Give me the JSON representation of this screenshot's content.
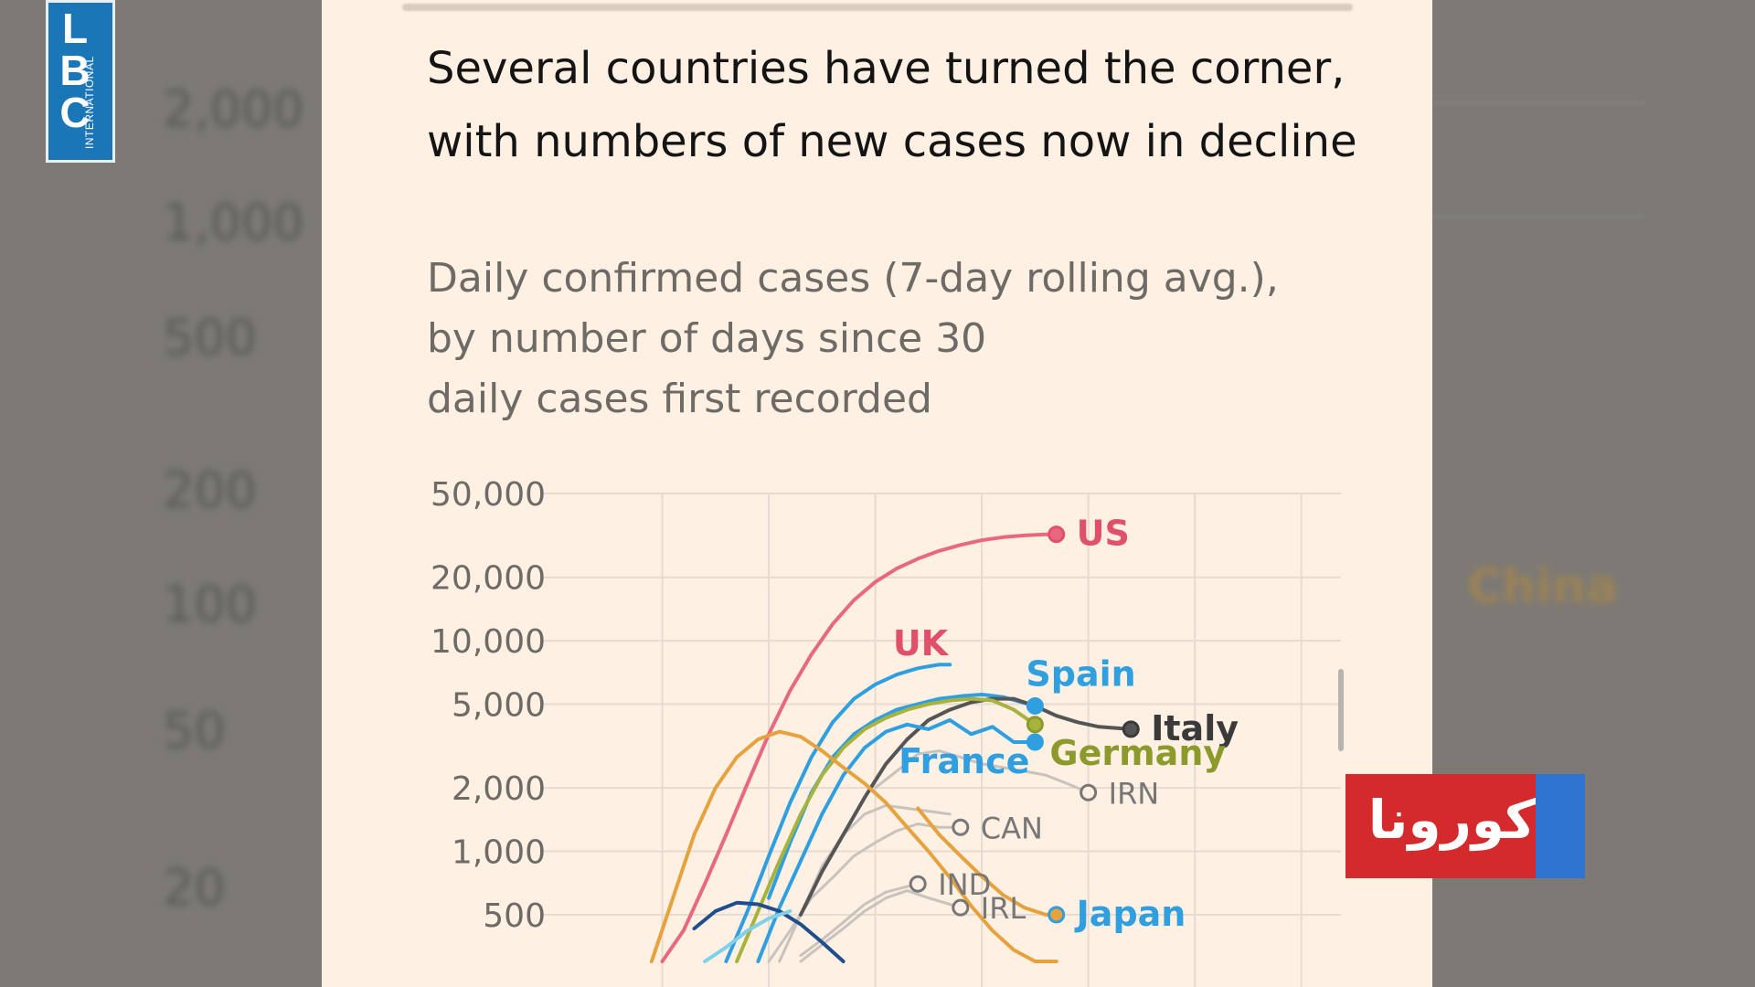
{
  "background": {
    "ticks": [
      "2,000",
      "1,000",
      "500",
      "200",
      "100",
      "50",
      "20"
    ],
    "label": "China"
  },
  "logo": {
    "letters": "LBC",
    "side_text": "INTERNATIONAL",
    "color": "#1b76b8"
  },
  "badge": {
    "text": "كورونا",
    "color": "#d42a2b",
    "stripe_color": "#2f74d0"
  },
  "chart_data": {
    "type": "line",
    "title": "Several countries have turned the corner, with numbers of new cases now in decline",
    "subtitle_lines": [
      "Daily confirmed cases (7-day rolling avg.),",
      "by number of days since 30",
      "daily cases first recorded"
    ],
    "y_scale": "log",
    "ylim": [
      300,
      50000
    ],
    "y_ticks": [
      50000,
      20000,
      10000,
      5000,
      2000,
      1000,
      500
    ],
    "y_tick_labels": [
      "50,000",
      "20,000",
      "10,000",
      "5,000",
      "2,000",
      "1,000",
      "500"
    ],
    "xlim": [
      -10,
      62
    ],
    "x_gridlines": [
      0,
      10,
      20,
      30,
      40,
      50,
      60
    ],
    "grid": true,
    "series": [
      {
        "name": "US",
        "color": "#e8697f",
        "label_color": "#e0506a",
        "label_weight": "bold",
        "endpoint": true,
        "x": [
          0,
          2,
          4,
          6,
          8,
          10,
          12,
          14,
          16,
          18,
          20,
          22,
          24,
          26,
          28,
          30,
          32,
          34,
          36,
          37
        ],
        "y": [
          300,
          420,
          700,
          1200,
          2100,
          3600,
          5800,
          8600,
          12000,
          15600,
          19000,
          22000,
          24500,
          26700,
          28500,
          30000,
          31000,
          31600,
          32000,
          32000
        ]
      },
      {
        "name": "UK",
        "color": "#2f9fe0",
        "label_color": "#e0506a",
        "label_weight": "bold",
        "endpoint": false,
        "x": [
          6,
          8,
          10,
          12,
          14,
          16,
          18,
          20,
          22,
          24,
          26,
          27
        ],
        "y": [
          300,
          520,
          950,
          1700,
          2800,
          4100,
          5300,
          6200,
          6900,
          7400,
          7700,
          7700
        ]
      },
      {
        "name": "Spain",
        "color": "#2f9fe0",
        "label_color": "#2f9fe0",
        "label_weight": "bold",
        "endpoint": true,
        "x": [
          10,
          12,
          14,
          16,
          18,
          20,
          22,
          24,
          26,
          28,
          30,
          32,
          35
        ],
        "y": [
          600,
          1100,
          1900,
          2800,
          3600,
          4200,
          4700,
          5000,
          5300,
          5450,
          5550,
          5400,
          4900
        ]
      },
      {
        "name": "Italy",
        "color": "#555555",
        "label_color": "#3a3a3a",
        "label_weight": "bold",
        "endpoint": true,
        "x": [
          13,
          15,
          17,
          19,
          21,
          23,
          25,
          27,
          29,
          31,
          33,
          35,
          37,
          39,
          41,
          44
        ],
        "y": [
          500,
          800,
          1200,
          1800,
          2600,
          3400,
          4200,
          4700,
          5100,
          5300,
          5300,
          4900,
          4400,
          4100,
          3900,
          3800
        ]
      },
      {
        "name": "Germany",
        "color": "#a6b33c",
        "label_color": "#8c9a2c",
        "label_weight": "bold",
        "endpoint": true,
        "x": [
          7,
          9,
          11,
          13,
          15,
          17,
          19,
          21,
          23,
          25,
          27,
          29,
          31,
          33,
          35
        ],
        "y": [
          300,
          520,
          900,
          1500,
          2300,
          3100,
          3800,
          4300,
          4700,
          5000,
          5200,
          5300,
          5200,
          4700,
          4000
        ]
      },
      {
        "name": "France",
        "color": "#2f9fe0",
        "label_color": "#2f9fe0",
        "label_weight": "bold",
        "endpoint": true,
        "x": [
          9,
          11,
          13,
          15,
          17,
          19,
          21,
          23,
          25,
          27,
          29,
          31,
          33,
          35
        ],
        "y": [
          300,
          540,
          900,
          1500,
          2300,
          3100,
          3700,
          4000,
          3800,
          4200,
          3600,
          3900,
          3300,
          3300
        ]
      },
      {
        "name": "IRN",
        "color": "#c8c3bd",
        "label_color": "#777777",
        "label_weight": "normal",
        "endpoint": true,
        "x": [
          20,
          22,
          24,
          26,
          28,
          30,
          32,
          34,
          36,
          38,
          40
        ],
        "y": [
          2000,
          2400,
          2900,
          3000,
          2800,
          2600,
          2500,
          2400,
          2300,
          2100,
          1900
        ]
      },
      {
        "name": "CAN",
        "color": "#c8c3bd",
        "label_color": "#777777",
        "label_weight": "normal",
        "endpoint": true,
        "x": [
          10,
          12,
          14,
          16,
          18,
          20,
          22,
          24,
          26,
          28
        ],
        "y": [
          300,
          420,
          600,
          750,
          950,
          1100,
          1250,
          1350,
          1300,
          1300
        ]
      },
      {
        "name": "IND",
        "color": "#c8c3bd",
        "label_color": "#777777",
        "label_weight": "normal",
        "endpoint": true,
        "x": [
          13,
          15,
          17,
          19,
          21,
          23,
          24
        ],
        "y": [
          320,
          380,
          460,
          560,
          640,
          680,
          700
        ]
      },
      {
        "name": "IRL",
        "color": "#c8c3bd",
        "label_color": "#777777",
        "label_weight": "normal",
        "endpoint": true,
        "x": [
          13,
          15,
          17,
          19,
          21,
          23,
          25,
          27,
          28
        ],
        "y": [
          300,
          360,
          430,
          520,
          600,
          650,
          600,
          560,
          540
        ]
      },
      {
        "name": "",
        "color": "#c8c3bd",
        "label_color": "#777777",
        "label_weight": "normal",
        "endpoint": false,
        "x": [
          11,
          13,
          15,
          17,
          19,
          21,
          23,
          25,
          27
        ],
        "y": [
          300,
          500,
          850,
          1200,
          1500,
          1650,
          1600,
          1550,
          1500
        ]
      },
      {
        "name": "",
        "color": "#e6a23c",
        "label_color": "#e6a23c",
        "label_weight": "normal",
        "endpoint": false,
        "x": [
          -1,
          1,
          3,
          5,
          7,
          9,
          11,
          13,
          15,
          17,
          19,
          21,
          23,
          25,
          27,
          29,
          31,
          33,
          35,
          37
        ],
        "y": [
          300,
          600,
          1200,
          2000,
          2800,
          3400,
          3700,
          3500,
          3000,
          2500,
          2100,
          1700,
          1300,
          1000,
          750,
          550,
          420,
          340,
          300,
          300
        ]
      },
      {
        "name": "",
        "color": "#1f4e8c",
        "label_color": "#1f4e8c",
        "label_weight": "normal",
        "endpoint": false,
        "x": [
          3,
          5,
          7,
          9,
          11,
          13,
          15,
          17
        ],
        "y": [
          430,
          520,
          570,
          560,
          520,
          450,
          370,
          300
        ]
      },
      {
        "name": "Japan",
        "color": "#e6a23c",
        "label_color": "#2f9fe0",
        "label_weight": "bold",
        "endpoint": true,
        "x": [
          24,
          26,
          28,
          30,
          32,
          34,
          36,
          37
        ],
        "y": [
          1600,
          1200,
          950,
          760,
          620,
          540,
          500,
          500
        ]
      },
      {
        "name": "",
        "color": "#7fd0e8",
        "label_color": "#7fd0e8",
        "label_weight": "normal",
        "endpoint": false,
        "x": [
          4,
          6,
          8,
          10,
          12
        ],
        "y": [
          300,
          350,
          420,
          480,
          520
        ]
      }
    ],
    "label_positions": {
      "US": "right",
      "UK": "above-left",
      "Spain": "above-right",
      "Italy": "right",
      "Germany": "below-right",
      "France": "below-left",
      "IRN": "right",
      "CAN": "right",
      "IND": "right",
      "IRL": "right",
      "Japan": "right"
    }
  }
}
